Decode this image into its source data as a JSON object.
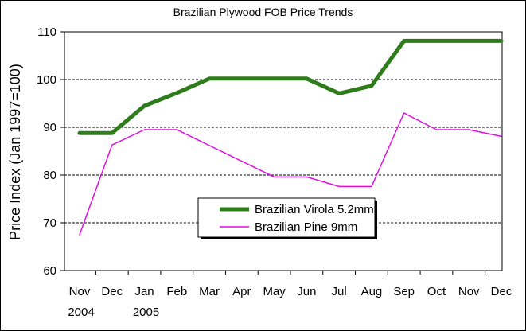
{
  "chart_data": {
    "type": "line",
    "title": "Brazilian Plywood FOB Price Trends",
    "ylabel": "Price Index (Jan 1997=100)",
    "xlabel": "",
    "categories": [
      "Nov",
      "Dec",
      "Jan",
      "Feb",
      "Mar",
      "Apr",
      "May",
      "Jun",
      "Jul",
      "Aug",
      "Sep",
      "Oct",
      "Nov",
      "Dec"
    ],
    "year_labels": [
      {
        "index": 0,
        "label": "2004"
      },
      {
        "index": 2,
        "label": "2005"
      }
    ],
    "ylim": [
      60,
      110
    ],
    "yticks": [
      60,
      70,
      80,
      90,
      100,
      110
    ],
    "grid": "dashed horizontal",
    "legend_position": "center-bottom",
    "series": [
      {
        "name": "Brazilian Virola 5.2mm",
        "color": "#2e7d1a",
        "values": [
          88.8,
          88.8,
          94.5,
          97.2,
          100.2,
          100.2,
          100.2,
          100.2,
          97.1,
          98.7,
          108.1,
          108.1,
          108.1,
          108.1
        ]
      },
      {
        "name": "Brazilian Pine 9mm",
        "color": "#e010e0",
        "values": [
          67.5,
          86.3,
          89.5,
          89.5,
          null,
          null,
          79.6,
          79.6,
          77.6,
          77.6,
          93.0,
          89.5,
          89.5,
          88.1
        ]
      }
    ]
  }
}
